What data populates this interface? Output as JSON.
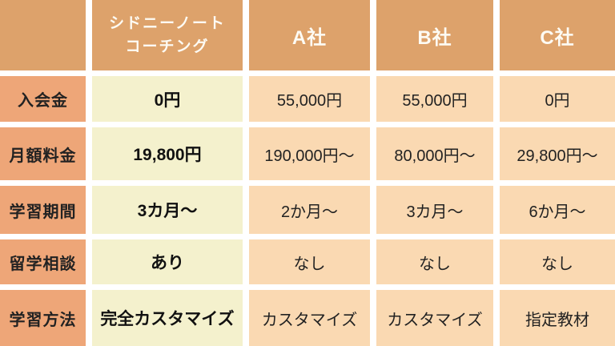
{
  "colors": {
    "header-bg": "#dda26b",
    "header-text": "#fdfbf4",
    "label-bg": "#eea678",
    "highlight-bg": "#f4f1cd",
    "value-bg": "#fad9b2",
    "dark-text": "#222222",
    "gutter": "#ffffff"
  },
  "header": {
    "brand_line1": "シドニーノート",
    "brand_line2": "コーチング"
  },
  "chart_data": {
    "type": "table",
    "title": "",
    "columns": [
      "",
      "シドニーノートコーチング",
      "A社",
      "B社",
      "C社"
    ],
    "highlight_column": "シドニーノートコーチング",
    "rows": [
      [
        "入会金",
        "0円",
        "55,000円",
        "55,000円",
        "0円"
      ],
      [
        "月額料金",
        "19,800円",
        "190,000円〜",
        "80,000円〜",
        "29,800円〜"
      ],
      [
        "学習期間",
        "3カ月〜",
        "2か月〜",
        "3カ月〜",
        "6か月〜"
      ],
      [
        "留学相談",
        "あり",
        "なし",
        "なし",
        "なし"
      ],
      [
        "学習方法",
        "完全カスタマイズ",
        "カスタマイズ",
        "カスタマイズ",
        "指定教材"
      ]
    ]
  }
}
